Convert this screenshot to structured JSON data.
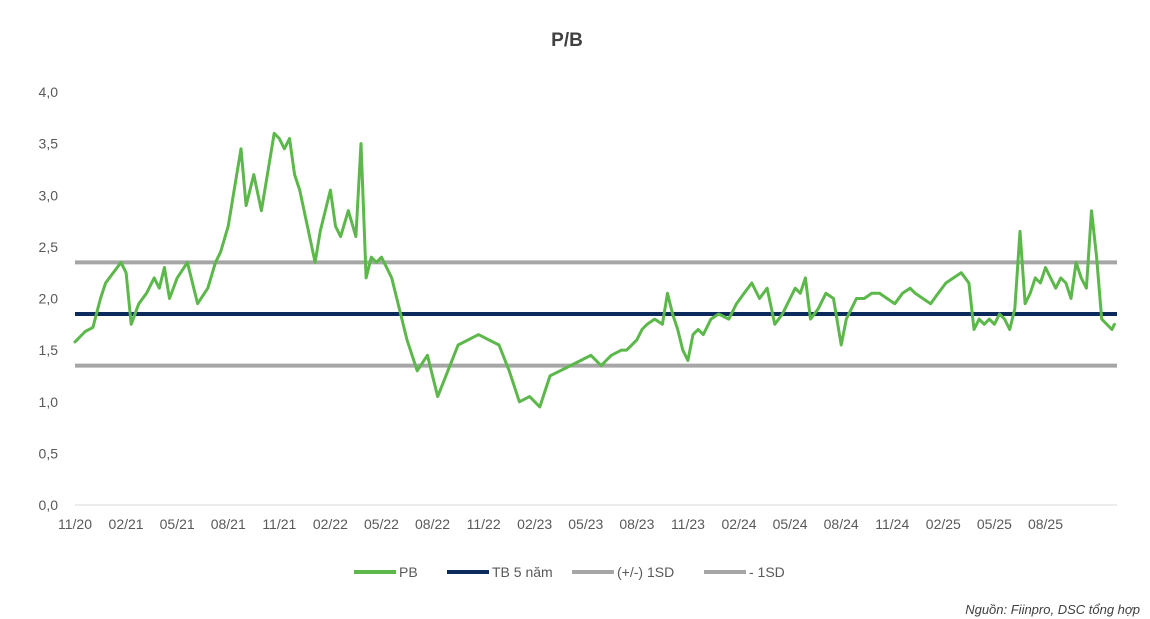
{
  "chart_data": {
    "type": "line",
    "title": "P/B",
    "xlabel": "",
    "ylabel": "",
    "ylim": [
      0,
      4
    ],
    "y_ticks": [
      "0,0",
      "0,5",
      "1,0",
      "1,5",
      "2,0",
      "2,5",
      "3,0",
      "3,5",
      "4,0"
    ],
    "categories": [
      "11/20",
      "02/21",
      "05/21",
      "08/21",
      "11/21",
      "02/22",
      "05/22",
      "08/22",
      "11/22",
      "02/23",
      "05/23",
      "08/23",
      "11/23",
      "02/24",
      "05/24",
      "08/24",
      "11/24",
      "02/25",
      "05/25",
      "08/25"
    ],
    "x_range": [
      0,
      20.4
    ],
    "series": [
      {
        "name": "PB",
        "color": "#5cb84a",
        "x": [
          0,
          0.2,
          0.35,
          0.5,
          0.6,
          0.75,
          0.9,
          1.0,
          1.1,
          1.25,
          1.4,
          1.55,
          1.65,
          1.75,
          1.85,
          2.0,
          2.2,
          2.4,
          2.6,
          2.75,
          2.85,
          3.0,
          3.1,
          3.25,
          3.35,
          3.5,
          3.65,
          3.8,
          3.9,
          4.0,
          4.1,
          4.2,
          4.3,
          4.4,
          4.55,
          4.7,
          4.8,
          4.9,
          5.0,
          5.1,
          5.2,
          5.35,
          5.5,
          5.6,
          5.7,
          5.8,
          5.9,
          6.0,
          6.1,
          6.2,
          6.3,
          6.5,
          6.7,
          6.9,
          7.1,
          7.3,
          7.5,
          7.7,
          7.9,
          8.1,
          8.3,
          8.5,
          8.7,
          8.9,
          9.1,
          9.3,
          9.5,
          9.7,
          9.9,
          10.1,
          10.3,
          10.5,
          10.7,
          10.8,
          10.9,
          11.0,
          11.1,
          11.2,
          11.35,
          11.5,
          11.6,
          11.7,
          11.8,
          11.9,
          12.0,
          12.1,
          12.2,
          12.3,
          12.45,
          12.6,
          12.8,
          12.95,
          13.1,
          13.25,
          13.4,
          13.55,
          13.7,
          13.85,
          14.0,
          14.1,
          14.2,
          14.3,
          14.4,
          14.55,
          14.7,
          14.85,
          15.0,
          15.1,
          15.2,
          15.3,
          15.45,
          15.6,
          15.75,
          15.9,
          16.05,
          16.2,
          16.35,
          16.45,
          16.6,
          16.75,
          16.9,
          17.05,
          17.2,
          17.35,
          17.5,
          17.6,
          17.7,
          17.8,
          17.9,
          18.0,
          18.1,
          18.2,
          18.3,
          18.4,
          18.5,
          18.6,
          18.7,
          18.8,
          18.9,
          19.0,
          19.1,
          19.2,
          19.3,
          19.4,
          19.5,
          19.6,
          19.7,
          19.8,
          19.9,
          20.0,
          20.1,
          20.2,
          20.3,
          20.35
        ],
        "values": [
          1.58,
          1.68,
          1.72,
          2.0,
          2.15,
          2.25,
          2.35,
          2.25,
          1.75,
          1.95,
          2.05,
          2.2,
          2.1,
          2.3,
          2.0,
          2.2,
          2.35,
          1.95,
          2.1,
          2.35,
          2.45,
          2.7,
          3.0,
          3.45,
          2.9,
          3.2,
          2.85,
          3.3,
          3.6,
          3.55,
          3.45,
          3.55,
          3.2,
          3.05,
          2.7,
          2.35,
          2.65,
          2.85,
          3.05,
          2.7,
          2.6,
          2.85,
          2.6,
          3.5,
          2.2,
          2.4,
          2.35,
          2.4,
          2.3,
          2.2,
          2.0,
          1.6,
          1.3,
          1.45,
          1.05,
          1.3,
          1.55,
          1.6,
          1.65,
          1.6,
          1.55,
          1.3,
          1.0,
          1.05,
          0.95,
          1.25,
          1.3,
          1.35,
          1.4,
          1.45,
          1.35,
          1.45,
          1.5,
          1.5,
          1.55,
          1.6,
          1.7,
          1.75,
          1.8,
          1.75,
          2.05,
          1.85,
          1.7,
          1.5,
          1.4,
          1.65,
          1.7,
          1.65,
          1.8,
          1.85,
          1.8,
          1.95,
          2.05,
          2.15,
          2.0,
          2.1,
          1.75,
          1.85,
          2.0,
          2.1,
          2.05,
          2.2,
          1.8,
          1.9,
          2.05,
          2.0,
          1.55,
          1.8,
          1.9,
          2.0,
          2.0,
          2.05,
          2.05,
          2.0,
          1.95,
          2.05,
          2.1,
          2.05,
          2.0,
          1.95,
          2.05,
          2.15,
          2.2,
          2.25,
          2.15,
          1.7,
          1.8,
          1.75,
          1.8,
          1.75,
          1.85,
          1.8,
          1.7,
          1.9,
          2.65,
          1.95,
          2.05,
          2.2,
          2.15,
          2.3,
          2.2,
          2.1,
          2.2,
          2.15,
          2.0,
          2.35,
          2.2,
          2.1,
          2.85,
          2.4,
          1.8,
          1.75,
          1.7,
          1.75
        ]
      },
      {
        "name": "TB 5 năm",
        "color": "#0d2a5c",
        "constant": 1.85
      },
      {
        "name": "(+/-) 1SD",
        "color": "#a6a6a6",
        "constant": 2.35
      },
      {
        "name": "- 1SD",
        "color": "#a6a6a6",
        "constant": 1.35
      }
    ],
    "legend_position": "bottom-center",
    "grid": false
  },
  "source": "Nguồn: Fiinpro, DSC tổng hợp"
}
